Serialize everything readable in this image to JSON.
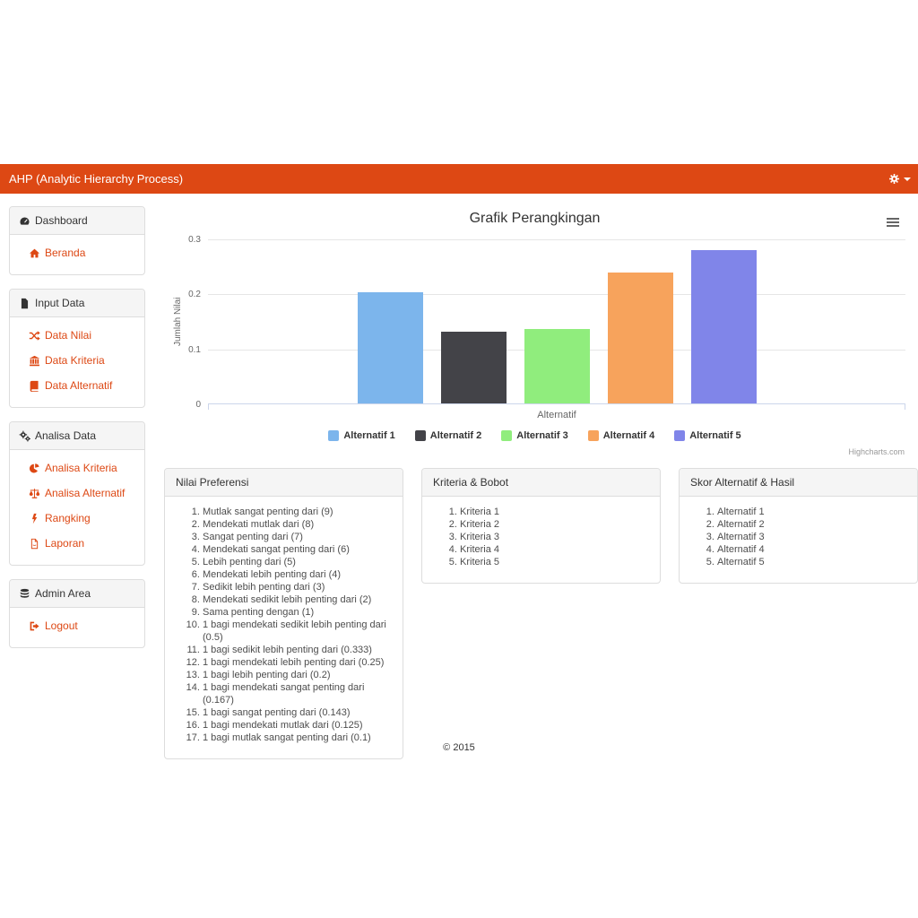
{
  "colors": {
    "accent": "#dd4814",
    "navbar_bg": "#dd4814",
    "panel_header_bg": "#f5f5f5",
    "panel_border": "#dddddd",
    "gridline": "#e6e6e6",
    "axis_line": "#ccd6eb"
  },
  "navbar": {
    "title": "AHP (Analytic Hierarchy Process)",
    "settings_icon": "gear-icon",
    "caret_icon": "caret-down-icon"
  },
  "sidebar": {
    "panels": [
      {
        "header": "Dashboard",
        "icon": "dashboard-icon",
        "items": [
          {
            "label": "Beranda",
            "icon": "home-icon"
          }
        ]
      },
      {
        "header": "Input Data",
        "icon": "file-icon",
        "items": [
          {
            "label": "Data Nilai",
            "icon": "random-icon"
          },
          {
            "label": "Data Kriteria",
            "icon": "bank-icon"
          },
          {
            "label": "Data Alternatif",
            "icon": "book-icon"
          }
        ]
      },
      {
        "header": "Analisa Data",
        "icon": "gears-icon",
        "items": [
          {
            "label": "Analisa Kriteria",
            "icon": "pie-chart-icon"
          },
          {
            "label": "Analisa Alternatif",
            "icon": "balance-scale-icon"
          },
          {
            "label": "Rangking",
            "icon": "bolt-icon"
          },
          {
            "label": "Laporan",
            "icon": "file-pdf-icon"
          }
        ]
      },
      {
        "header": "Admin Area",
        "icon": "database-icon",
        "items": [
          {
            "label": "Logout",
            "icon": "sign-out-icon"
          }
        ]
      }
    ]
  },
  "chart_data": {
    "type": "bar",
    "title": "Grafik Perangkingan",
    "categories": [
      "Alternatif"
    ],
    "series": [
      {
        "name": "Alternatif 1",
        "color": "#7cb5ec",
        "values": [
          0.202
        ]
      },
      {
        "name": "Alternatif 2",
        "color": "#434348",
        "values": [
          0.131
        ]
      },
      {
        "name": "Alternatif 3",
        "color": "#90ed7d",
        "values": [
          0.135
        ]
      },
      {
        "name": "Alternatif 4",
        "color": "#f7a35c",
        "values": [
          0.238
        ]
      },
      {
        "name": "Alternatif 5",
        "color": "#8085e9",
        "values": [
          0.279
        ]
      }
    ],
    "xlabel": "",
    "ylabel": "Jumlah Nilai",
    "ylim": [
      0,
      0.3
    ],
    "yticks": [
      0,
      0.1,
      0.2,
      0.3
    ],
    "grid": true,
    "legend_position": "bottom",
    "credit": "Highcharts.com",
    "context_menu_icon": "hamburger-icon"
  },
  "panels": {
    "nilai_preferensi": {
      "title": "Nilai Preferensi",
      "items": [
        "Mutlak sangat penting dari (9)",
        "Mendekati mutlak dari (8)",
        "Sangat penting dari (7)",
        "Mendekati sangat penting dari (6)",
        "Lebih penting dari (5)",
        "Mendekati lebih penting dari (4)",
        "Sedikit lebih penting dari (3)",
        "Mendekati sedikit lebih penting dari (2)",
        "Sama penting dengan (1)",
        "1 bagi mendekati sedikit lebih penting dari (0.5)",
        "1 bagi sedikit lebih penting dari (0.333)",
        "1 bagi mendekati lebih penting dari (0.25)",
        "1 bagi lebih penting dari (0.2)",
        "1 bagi mendekati sangat penting dari (0.167)",
        "1 bagi sangat penting dari (0.143)",
        "1 bagi mendekati mutlak dari (0.125)",
        "1 bagi mutlak sangat penting dari (0.1)"
      ]
    },
    "kriteria_bobot": {
      "title": "Kriteria & Bobot",
      "items": [
        "Kriteria 1",
        "Kriteria 2",
        "Kriteria 3",
        "Kriteria 4",
        "Kriteria 5"
      ]
    },
    "skor_alternatif": {
      "title": "Skor Alternatif & Hasil",
      "items": [
        "Alternatif 1",
        "Alternatif 2",
        "Alternatif 3",
        "Alternatif 4",
        "Alternatif 5"
      ]
    }
  },
  "footer": {
    "copyright": "© 2015"
  }
}
